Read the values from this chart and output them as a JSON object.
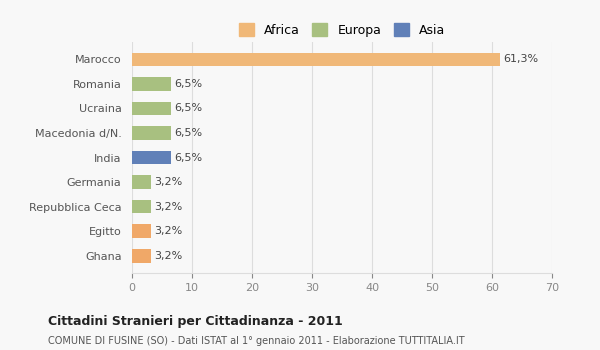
{
  "categories": [
    "Ghana",
    "Egitto",
    "Repubblica Ceca",
    "Germania",
    "India",
    "Macedonia d/N.",
    "Ucraina",
    "Romania",
    "Marocco"
  ],
  "values": [
    3.2,
    3.2,
    3.2,
    3.2,
    6.5,
    6.5,
    6.5,
    6.5,
    61.3
  ],
  "labels": [
    "3,2%",
    "3,2%",
    "3,2%",
    "3,2%",
    "6,5%",
    "6,5%",
    "6,5%",
    "6,5%",
    "61,3%"
  ],
  "colors": [
    "#f0a868",
    "#f0a868",
    "#a8c080",
    "#a8c080",
    "#6080b8",
    "#a8c080",
    "#a8c080",
    "#a8c080",
    "#f0b878"
  ],
  "continent": [
    "Africa",
    "Africa",
    "Europa",
    "Europa",
    "Asia",
    "Europa",
    "Europa",
    "Europa",
    "Africa"
  ],
  "legend_labels": [
    "Africa",
    "Europa",
    "Asia"
  ],
  "legend_colors": [
    "#f0b878",
    "#a8c080",
    "#6080b8"
  ],
  "xlim": [
    0,
    70
  ],
  "xticks": [
    0,
    10,
    20,
    30,
    40,
    50,
    60,
    70
  ],
  "title": "Cittadini Stranieri per Cittadinanza - 2011",
  "subtitle": "COMUNE DI FUSINE (SO) - Dati ISTAT al 1° gennaio 2011 - Elaborazione TUTTITALIA.IT",
  "bg_color": "#f8f8f8",
  "bar_height": 0.55,
  "grid_color": "#dddddd"
}
